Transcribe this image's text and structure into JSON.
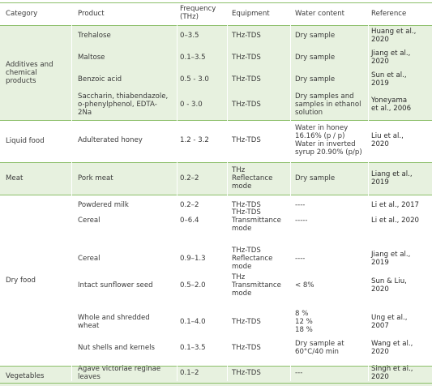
{
  "headers": {
    "category": "Category",
    "product": "Product",
    "frequency": "Frequency\n(THz)",
    "equipment": "Equipment",
    "water": "Water content",
    "reference": "Reference"
  },
  "groups": [
    {
      "category": "Additives and\nchemical\nproducts",
      "rows": [
        {
          "product": "Trehalose",
          "frequency": "0–3.5",
          "equipment": "THz-TDS",
          "water": "Dry sample",
          "reference": "Huang et al.,\n2020"
        },
        {
          "product": "Maltose",
          "frequency": "0.1–3.5",
          "equipment": "THz-TDS",
          "water": "Dry sample",
          "reference": "Jiang et al.,\n2020"
        },
        {
          "product": "Benzoic acid",
          "frequency": "0.5 - 3.0",
          "equipment": "THz-TDS",
          "water": "Dry sample",
          "reference": "Sun et al.,\n2019"
        },
        {
          "product": "Saccharin, thiabendazole,\no-phenylphenol, EDTA-\n2Na",
          "frequency": "0 - 3.0",
          "equipment": "THz-TDS",
          "water": "Dry samples and\nsamples in ethanol\nsolution",
          "reference": "Yoneyama\net al., 2006"
        }
      ]
    },
    {
      "category": "Liquid food",
      "rows": [
        {
          "product": "Adulterated honey",
          "frequency": "1.2 - 3.2",
          "equipment": "THz-TDS",
          "water": "Water in honey\n16.16% (p / p)\nWater in inverted\nsyrup 20.90% (p/p)",
          "reference": "Liu et al.,\n2020"
        }
      ]
    },
    {
      "category": "Meat",
      "rows": [
        {
          "product": "Pork meat",
          "frequency": "0.2–2",
          "equipment": "THz\nReflectance\nmode",
          "water": "Dry sample",
          "reference": "Liang et al.,\n2019"
        }
      ]
    },
    {
      "category": "Dry food",
      "rows": [
        {
          "product": "Powdered milk",
          "frequency": "0.2–2",
          "equipment": "THz-TDS",
          "water": "----",
          "reference": "Li et al., 2017"
        },
        {
          "product": "Cereal",
          "frequency": "0–6.4",
          "equipment": "THz-TDS\nTransmittance\nmode",
          "water": "-----",
          "reference": "Li et al., 2020"
        },
        {
          "product": "Cereal",
          "frequency": "0.9–1.3",
          "equipment": "THz-TDS\nReflectance\nmode",
          "water": "----",
          "reference": "Jiang et al.,\n2019"
        },
        {
          "product": "Intact sunflower seed",
          "frequency": "0.5–2.0",
          "equipment": "THz\nTransmittance\nmode",
          "water": "< 8%",
          "reference": "Sun & Liu,\n2020"
        },
        {
          "product": "Whole and shredded\nwheat",
          "frequency": "0.1–4.0",
          "equipment": "THz-TDS",
          "water": "8 %\n12 %\n18 %",
          "reference": "Ung et al.,\n2007"
        },
        {
          "product": "Nut shells and kernels",
          "frequency": "0.1–3.5",
          "equipment": "THz-TDS",
          "water": "Dry sample at\n60°C/40 min",
          "reference": "Wang et al.,\n2020"
        }
      ]
    },
    {
      "category": "Vegetables",
      "rows": [
        {
          "product": "Agave victoriae reginae\nleaves",
          "frequency": "0.1–2",
          "equipment": "THz-TDS",
          "water": "---",
          "reference": "Singh et al.,\n2020"
        }
      ]
    }
  ]
}
